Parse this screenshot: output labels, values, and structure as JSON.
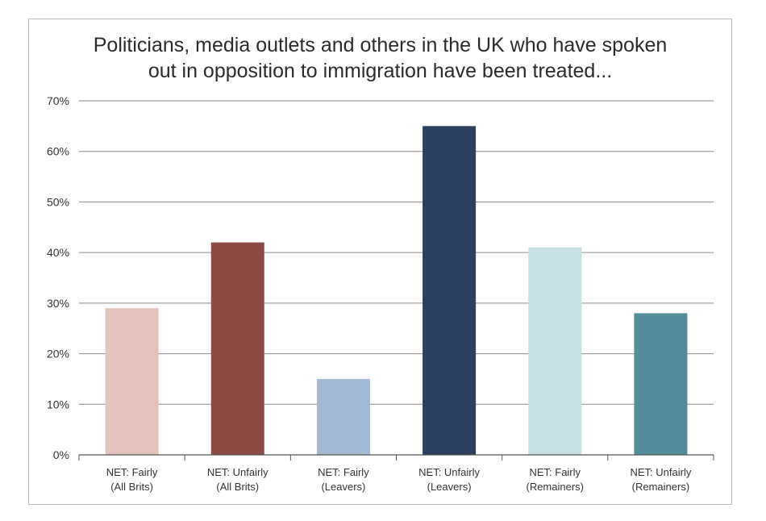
{
  "chart_data": {
    "type": "bar",
    "title_lines": [
      "Politicians, media outlets and others in the UK who have spoken",
      "out in opposition to immigration have been treated..."
    ],
    "categories": [
      [
        "NET: Fairly",
        "(All Brits)"
      ],
      [
        "NET: Unfairly",
        "(All Brits)"
      ],
      [
        "NET: Fairly",
        "(Leavers)"
      ],
      [
        "NET: Unfairly",
        "(Leavers)"
      ],
      [
        "NET: Fairly",
        "(Remainers)"
      ],
      [
        "NET: Unfairly",
        "(Remainers)"
      ]
    ],
    "values": [
      29,
      42,
      15,
      65,
      41,
      28
    ],
    "colors": [
      "#e2c2bb",
      "#8c4a45",
      "#a3b8d3",
      "#2b3f5e",
      "#c6e0e4",
      "#548b99"
    ],
    "ylim": [
      0,
      70
    ],
    "yticks": [
      0,
      10,
      20,
      30,
      40,
      50,
      60,
      70
    ],
    "ytick_labels": [
      "0%",
      "10%",
      "20%",
      "30%",
      "40%",
      "50%",
      "60%",
      "70%"
    ],
    "grid": true,
    "xlabel": "",
    "ylabel": ""
  }
}
